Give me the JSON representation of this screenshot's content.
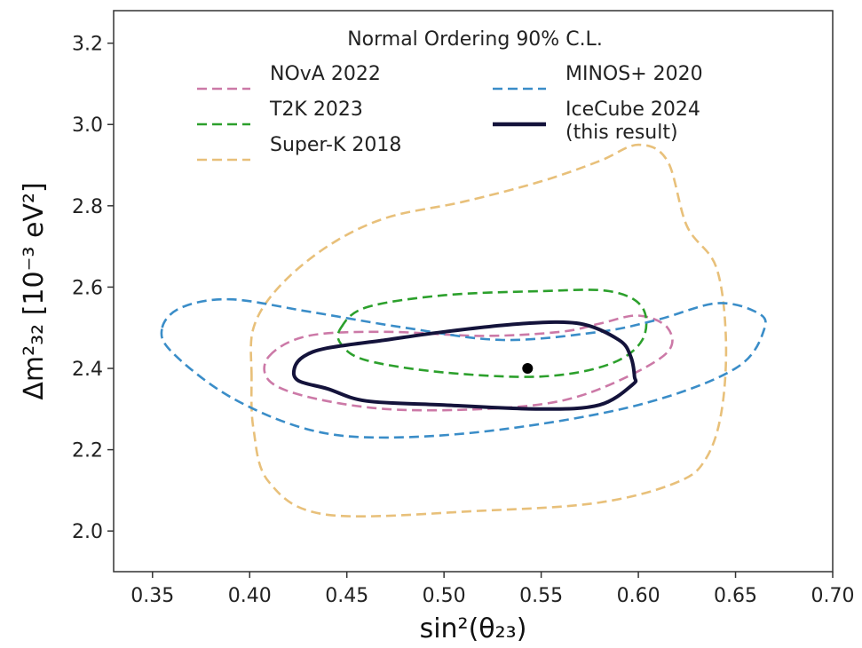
{
  "chart_data": {
    "type": "line",
    "xlabel": "sin²(θ₂₃)",
    "ylabel": "Δm²₃₂ [10⁻³ eV²]",
    "xlim": [
      0.33,
      0.7
    ],
    "ylim": [
      1.9,
      3.28
    ],
    "xticks": [
      "0.35",
      "0.40",
      "0.45",
      "0.50",
      "0.55",
      "0.60",
      "0.65",
      "0.70"
    ],
    "yticks": [
      "2.0",
      "2.2",
      "2.4",
      "2.6",
      "2.8",
      "3.0",
      "3.2"
    ],
    "grid": false,
    "legend": {
      "title": "Normal Ordering 90% C.L.",
      "placement": "top"
    },
    "best_fit": {
      "x": 0.543,
      "y": 2.4
    },
    "series": [
      {
        "name": "NOvA 2022",
        "color": "#cc79a7",
        "style": "dashed",
        "points": [
          [
            0.41,
            2.43
          ],
          [
            0.43,
            2.48
          ],
          [
            0.47,
            2.49
          ],
          [
            0.52,
            2.48
          ],
          [
            0.56,
            2.49
          ],
          [
            0.58,
            2.51
          ],
          [
            0.6,
            2.53
          ],
          [
            0.615,
            2.5
          ],
          [
            0.615,
            2.44
          ],
          [
            0.59,
            2.37
          ],
          [
            0.56,
            2.32
          ],
          [
            0.52,
            2.3
          ],
          [
            0.47,
            2.3
          ],
          [
            0.43,
            2.33
          ],
          [
            0.41,
            2.37
          ],
          [
            0.41,
            2.43
          ]
        ]
      },
      {
        "name": "T2K 2023",
        "color": "#2ca02c",
        "style": "dashed",
        "points": [
          [
            0.447,
            2.5
          ],
          [
            0.46,
            2.55
          ],
          [
            0.5,
            2.58
          ],
          [
            0.55,
            2.59
          ],
          [
            0.585,
            2.59
          ],
          [
            0.602,
            2.55
          ],
          [
            0.602,
            2.47
          ],
          [
            0.585,
            2.41
          ],
          [
            0.55,
            2.38
          ],
          [
            0.5,
            2.39
          ],
          [
            0.46,
            2.42
          ],
          [
            0.447,
            2.46
          ],
          [
            0.447,
            2.5
          ]
        ]
      },
      {
        "name": "Super-K 2018",
        "color": "#e8c07a",
        "style": "dashed",
        "points": [
          [
            0.401,
            2.38
          ],
          [
            0.402,
            2.5
          ],
          [
            0.415,
            2.6
          ],
          [
            0.44,
            2.7
          ],
          [
            0.47,
            2.77
          ],
          [
            0.51,
            2.81
          ],
          [
            0.55,
            2.86
          ],
          [
            0.58,
            2.91
          ],
          [
            0.6,
            2.95
          ],
          [
            0.615,
            2.91
          ],
          [
            0.625,
            2.75
          ],
          [
            0.64,
            2.65
          ],
          [
            0.645,
            2.48
          ],
          [
            0.643,
            2.3
          ],
          [
            0.635,
            2.18
          ],
          [
            0.62,
            2.12
          ],
          [
            0.58,
            2.07
          ],
          [
            0.52,
            2.05
          ],
          [
            0.44,
            2.04
          ],
          [
            0.41,
            2.12
          ],
          [
            0.402,
            2.25
          ],
          [
            0.401,
            2.38
          ]
        ]
      },
      {
        "name": "MINOS+ 2020",
        "color": "#3a8dc8",
        "style": "dashed",
        "points": [
          [
            0.355,
            2.5
          ],
          [
            0.365,
            2.55
          ],
          [
            0.39,
            2.57
          ],
          [
            0.43,
            2.54
          ],
          [
            0.48,
            2.5
          ],
          [
            0.53,
            2.47
          ],
          [
            0.58,
            2.49
          ],
          [
            0.61,
            2.52
          ],
          [
            0.64,
            2.56
          ],
          [
            0.66,
            2.54
          ],
          [
            0.665,
            2.5
          ],
          [
            0.65,
            2.4
          ],
          [
            0.6,
            2.31
          ],
          [
            0.53,
            2.25
          ],
          [
            0.47,
            2.23
          ],
          [
            0.43,
            2.25
          ],
          [
            0.39,
            2.33
          ],
          [
            0.36,
            2.44
          ],
          [
            0.355,
            2.5
          ]
        ]
      },
      {
        "name": "IceCube 2024\n(this result)",
        "color": "#14133b",
        "style": "solid",
        "points": [
          [
            0.423,
            2.4
          ],
          [
            0.428,
            2.43
          ],
          [
            0.44,
            2.45
          ],
          [
            0.47,
            2.47
          ],
          [
            0.5,
            2.49
          ],
          [
            0.54,
            2.51
          ],
          [
            0.57,
            2.51
          ],
          [
            0.59,
            2.47
          ],
          [
            0.596,
            2.43
          ],
          [
            0.598,
            2.38
          ],
          [
            0.597,
            2.36
          ],
          [
            0.58,
            2.31
          ],
          [
            0.55,
            2.3
          ],
          [
            0.5,
            2.31
          ],
          [
            0.46,
            2.32
          ],
          [
            0.44,
            2.35
          ],
          [
            0.425,
            2.37
          ],
          [
            0.423,
            2.4
          ]
        ]
      }
    ]
  }
}
